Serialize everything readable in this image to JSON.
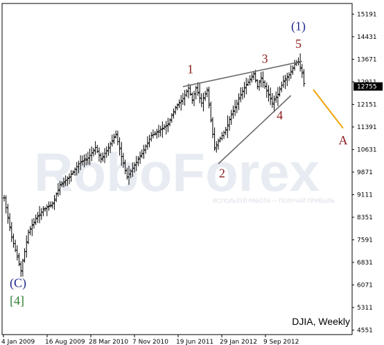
{
  "watermark": {
    "brand": "RoboForex",
    "tagline": "ИСПОЛЬЗУЙ РАБОТА — ПОЛУЧАЙ ПРИБЫЛЬ"
  },
  "current_price_label": "12755",
  "colors": {
    "bars": "#000000",
    "wave_label_main": "#8b1a1a",
    "wave_label_degree": "#1f2a8c",
    "wave_label_green": "#2e7d32",
    "trendlines": "#6b6b6b",
    "forecast": "#f0a000",
    "price_box_bg": "#000000",
    "price_box_fg": "#ffffff",
    "watermark": "#e8ecf2"
  },
  "chart_data": {
    "type": "ohlc",
    "title": "DJIA, Weekly",
    "x_tick_labels": [
      "4 Jan 2009",
      "16 Aug 2009",
      "28 Mar 2010",
      "7 Nov 2010",
      "19 Jun 2011",
      "29 Jan 2012",
      "9 Sep 2012"
    ],
    "y_tick_labels": [
      "15191",
      "14431",
      "13671",
      "12911",
      "12151",
      "11391",
      "10631",
      "9871",
      "9111",
      "8351",
      "7591",
      "6831",
      "6071",
      "5311",
      "4551"
    ],
    "ylim": [
      4400,
      15550
    ],
    "path_points": [
      [
        0,
        9000
      ],
      [
        4,
        7700
      ],
      [
        9,
        6550
      ],
      [
        13,
        7850
      ],
      [
        17,
        8300
      ],
      [
        21,
        8600
      ],
      [
        26,
        8800
      ],
      [
        30,
        9450
      ],
      [
        35,
        9700
      ],
      [
        40,
        10150
      ],
      [
        45,
        10350
      ],
      [
        49,
        10700
      ],
      [
        52,
        10300
      ],
      [
        55,
        10600
      ],
      [
        60,
        11150
      ],
      [
        63,
        10400
      ],
      [
        66,
        9700
      ],
      [
        70,
        10100
      ],
      [
        74,
        10500
      ],
      [
        79,
        11100
      ],
      [
        84,
        11300
      ],
      [
        88,
        11500
      ],
      [
        92,
        12050
      ],
      [
        96,
        12350
      ],
      [
        99,
        12700
      ],
      [
        101,
        12300
      ],
      [
        103,
        12700
      ],
      [
        106,
        12200
      ],
      [
        109,
        12650
      ],
      [
        111,
        11600
      ],
      [
        113,
        10700
      ],
      [
        116,
        11000
      ],
      [
        119,
        11300
      ],
      [
        122,
        11800
      ],
      [
        125,
        12200
      ],
      [
        128,
        12600
      ],
      [
        131,
        12900
      ],
      [
        134,
        13200
      ],
      [
        136,
        12750
      ],
      [
        138,
        13050
      ],
      [
        141,
        12600
      ],
      [
        144,
        12200
      ],
      [
        147,
        12500
      ],
      [
        150,
        12950
      ],
      [
        153,
        13150
      ],
      [
        156,
        13500
      ],
      [
        158,
        13600
      ],
      [
        160,
        13200
      ],
      [
        161,
        12850
      ]
    ],
    "wave_labels": [
      {
        "text": "(C)",
        "x": 3,
        "y": 6000,
        "color": "degree"
      },
      {
        "text": "[4]",
        "x": 3,
        "y": 5400,
        "color": "green"
      },
      {
        "text": "1",
        "x": 100,
        "y": 13200,
        "color": "main"
      },
      {
        "text": "2",
        "x": 117,
        "y": 9700,
        "color": "main"
      },
      {
        "text": "3",
        "x": 140,
        "y": 13550,
        "color": "main"
      },
      {
        "text": "4",
        "x": 148,
        "y": 11650,
        "color": "main"
      },
      {
        "text": "(1)",
        "x": 158,
        "y": 14650,
        "color": "degree"
      },
      {
        "text": "5",
        "x": 158,
        "y": 14050,
        "color": "main"
      },
      {
        "text": "A",
        "x": 182,
        "y": 10800,
        "color": "main"
      }
    ],
    "trendlines": [
      {
        "from": [
          96,
          12750
        ],
        "to": [
          160,
          13600
        ]
      },
      {
        "from": [
          115,
          10150
        ],
        "to": [
          154,
          12450
        ]
      }
    ],
    "forecast_line": {
      "from": [
        166,
        12650
      ],
      "to": [
        182,
        11350
      ]
    }
  }
}
